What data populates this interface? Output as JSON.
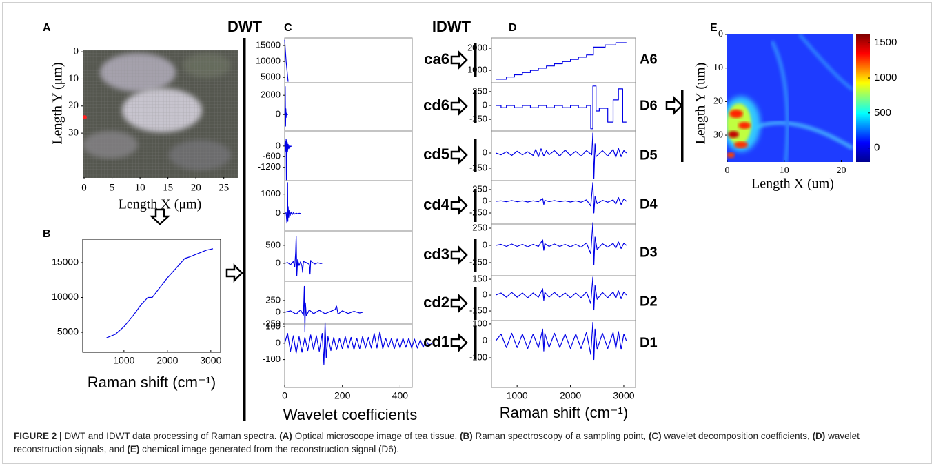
{
  "panel_labels": [
    "A",
    "B",
    "C",
    "D",
    "E"
  ],
  "dwt": "DWT",
  "idwt": "IDWT",
  "panel_a": {
    "xlabel": "Length X (μm)",
    "ylabel": "Length Y (μm)",
    "xlim": [
      -0.25,
      27.5
    ],
    "ylim": [
      -0.8,
      46.5
    ],
    "xticks": [
      0,
      5,
      10,
      15,
      20,
      25
    ],
    "yticks": [
      0,
      10,
      20,
      30
    ]
  },
  "panel_b": {
    "xlabel": "Raman shift (cm⁻¹)",
    "color": "#0000e6",
    "xlim": [
      50,
      3225
    ],
    "ylim": [
      2130,
      18370
    ],
    "xticks": [
      1000,
      2000,
      3000
    ],
    "yticks": [
      5000,
      10000,
      15000
    ],
    "x": [
      600,
      800,
      1000,
      1200,
      1400,
      1550,
      1650,
      1800,
      2000,
      2200,
      2400,
      2500,
      2700,
      2900,
      3050
    ],
    "values": [
      4200,
      4700,
      5800,
      7300,
      9000,
      10000,
      10000,
      11200,
      12800,
      14200,
      15600,
      15800,
      16300,
      16800,
      17000
    ]
  },
  "panel_c": {
    "xlabel": "Wavelet coefficients",
    "color": "#0000e6",
    "xlim": [
      0,
      442
    ],
    "xticks": [
      0,
      200,
      400
    ],
    "subplots": [
      {
        "label": "ca6",
        "ylim": [
          3300,
          17400
        ],
        "yticks": [
          5000,
          10000,
          15000
        ],
        "x": [
          0,
          5,
          12
        ],
        "values": [
          16800,
          10000,
          3600
        ]
      },
      {
        "label": "cd6",
        "ylim": [
          -1700,
          3300
        ],
        "yticks": [
          0,
          2000
        ],
        "x": [
          0,
          1,
          2,
          3,
          4,
          5,
          6,
          7,
          9,
          12
        ],
        "values": [
          0,
          200,
          2900,
          -1200,
          600,
          -300,
          150,
          -50,
          20,
          0
        ]
      },
      {
        "label": "cd5",
        "ylim": [
          -1950,
          850
        ],
        "yticks": [
          -1200,
          -600,
          0
        ],
        "x": [
          0,
          2,
          4,
          5,
          6,
          7,
          8,
          9,
          10,
          12,
          14,
          17,
          20,
          24
        ],
        "values": [
          0,
          250,
          -300,
          400,
          -1900,
          300,
          -700,
          200,
          -300,
          100,
          -150,
          50,
          -30,
          0
        ]
      },
      {
        "label": "cd4",
        "ylim": [
          -900,
          1700
        ],
        "yticks": [
          0,
          1000
        ],
        "x": [
          0,
          5,
          8,
          10,
          11,
          12,
          14,
          16,
          19,
          22,
          26,
          30,
          35,
          40,
          45,
          50,
          55
        ],
        "values": [
          0,
          40,
          -500,
          1600,
          -400,
          350,
          -200,
          150,
          -100,
          80,
          -60,
          40,
          -30,
          20,
          -15,
          10,
          0
        ]
      },
      {
        "label": "cd3",
        "ylim": [
          -500,
          900
        ],
        "yticks": [
          0,
          500
        ],
        "x": [
          0,
          10,
          20,
          30,
          35,
          38,
          40,
          42,
          45,
          50,
          55,
          60,
          62,
          65,
          75,
          85,
          88,
          90,
          95,
          105,
          115,
          125,
          130
        ],
        "values": [
          0,
          20,
          -40,
          50,
          -100,
          300,
          750,
          -350,
          100,
          -60,
          40,
          -80,
          -250,
          50,
          20,
          -30,
          -300,
          80,
          30,
          -20,
          15,
          -10,
          0
        ]
      },
      {
        "label": "cd2",
        "ylim": [
          -250,
          660
        ],
        "yticks": [
          -250,
          0,
          250
        ],
        "x": [
          0,
          20,
          40,
          55,
          65,
          68,
          70,
          72,
          75,
          85,
          100,
          120,
          140,
          160,
          175,
          180,
          185,
          200,
          220,
          240,
          260,
          270
        ],
        "values": [
          0,
          30,
          -40,
          50,
          -60,
          550,
          -420,
          200,
          -80,
          50,
          -30,
          40,
          -30,
          20,
          60,
          130,
          -40,
          30,
          -25,
          20,
          -15,
          0
        ]
      },
      {
        "label": "cd1",
        "ylim": [
          -270,
          117
        ],
        "yticks": [
          -100,
          0,
          100
        ],
        "x": [
          0,
          10,
          20,
          30,
          40,
          50,
          60,
          70,
          80,
          90,
          100,
          110,
          120,
          130,
          136,
          140,
          144,
          150,
          160,
          170,
          180,
          190,
          200,
          210,
          220,
          230,
          240,
          250,
          260,
          270,
          280,
          290,
          300,
          310,
          320,
          330,
          340,
          350,
          360,
          370,
          380,
          390,
          400,
          410,
          420,
          430,
          440,
          450,
          460,
          470,
          480,
          490,
          500,
          510
        ],
        "values": [
          0,
          60,
          -50,
          45,
          -60,
          40,
          -55,
          35,
          -45,
          50,
          -40,
          45,
          -50,
          60,
          -130,
          125,
          -90,
          40,
          -45,
          35,
          -40,
          30,
          -35,
          40,
          -30,
          35,
          -40,
          30,
          -35,
          40,
          -30,
          35,
          -30,
          60,
          -30,
          70,
          -35,
          30,
          -25,
          30,
          -35,
          25,
          -30,
          30,
          -25,
          30,
          -30,
          25,
          -30,
          20,
          -25,
          20,
          -15,
          0
        ]
      }
    ]
  },
  "panel_d": {
    "xlabel": "Raman shift (cm⁻¹)",
    "color": "#0000e6",
    "xlim": [
      520,
      3220
    ],
    "xticks": [
      1000,
      2000,
      3000
    ],
    "subplots": [
      {
        "label": "A6",
        "ylim": [
          440,
          2470
        ],
        "yticks": [
          1000,
          2000
        ],
        "x": [
          600,
          800,
          800,
          950,
          950,
          1100,
          1100,
          1250,
          1250,
          1400,
          1400,
          1550,
          1550,
          1700,
          1700,
          1850,
          1850,
          2000,
          2000,
          2150,
          2150,
          2300,
          2300,
          2430,
          2430,
          2650,
          2650,
          2850,
          2850,
          3050
        ],
        "values": [
          600,
          600,
          700,
          700,
          800,
          800,
          900,
          900,
          1000,
          1000,
          1100,
          1100,
          1200,
          1200,
          1300,
          1300,
          1400,
          1400,
          1500,
          1500,
          1600,
          1600,
          1700,
          1700,
          2050,
          2050,
          2150,
          2150,
          2250,
          2250
        ]
      },
      {
        "label": "D6",
        "ylim": [
          -460,
          410
        ],
        "yticks": [
          -250,
          0,
          250
        ],
        "x": [
          600,
          700,
          700,
          800,
          800,
          950,
          950,
          1100,
          1100,
          1250,
          1250,
          1400,
          1400,
          1550,
          1550,
          1700,
          1700,
          1850,
          1850,
          2000,
          2000,
          2150,
          2150,
          2300,
          2300,
          2380,
          2380,
          2420,
          2420,
          2480,
          2480,
          2540,
          2540,
          2700,
          2700,
          2800,
          2800,
          2900,
          2900,
          2980,
          2980,
          3050
        ],
        "values": [
          0,
          0,
          -40,
          -40,
          0,
          0,
          -40,
          -40,
          0,
          0,
          -40,
          -40,
          0,
          0,
          -40,
          -40,
          0,
          0,
          -40,
          -40,
          0,
          0,
          -40,
          -40,
          0,
          0,
          -420,
          -420,
          350,
          350,
          -100,
          -100,
          -50,
          -50,
          -300,
          -300,
          100,
          100,
          300,
          300,
          -300,
          -300
        ]
      },
      {
        "label": "D5",
        "ylim": [
          -455,
          364
        ],
        "yticks": [
          -250,
          0
        ],
        "x": [
          600,
          700,
          800,
          900,
          1000,
          1100,
          1200,
          1300,
          1350,
          1400,
          1450,
          1500,
          1550,
          1600,
          1700,
          1800,
          1900,
          2000,
          2100,
          2200,
          2300,
          2400,
          2420,
          2440,
          2460,
          2480,
          2600,
          2700,
          2800,
          2850,
          2900,
          2950,
          3000,
          3050
        ],
        "values": [
          0,
          -30,
          20,
          -40,
          30,
          -30,
          20,
          -40,
          60,
          -60,
          70,
          -50,
          40,
          -30,
          40,
          -50,
          50,
          -40,
          30,
          -50,
          40,
          -30,
          330,
          -420,
          150,
          -60,
          40,
          -50,
          60,
          -70,
          80,
          -60,
          40,
          0
        ]
      },
      {
        "label": "D4",
        "ylim": [
          -485,
          440
        ],
        "yticks": [
          -250,
          0,
          250
        ],
        "x": [
          600,
          700,
          800,
          900,
          1000,
          1100,
          1200,
          1300,
          1400,
          1480,
          1500,
          1520,
          1600,
          1700,
          1800,
          1900,
          2000,
          2100,
          2200,
          2300,
          2380,
          2420,
          2440,
          2460,
          2500,
          2600,
          2700,
          2800,
          2850,
          2900,
          2950,
          3000,
          3050
        ],
        "values": [
          0,
          10,
          -10,
          15,
          -10,
          10,
          -15,
          10,
          -10,
          60,
          -70,
          20,
          -10,
          15,
          -10,
          10,
          -15,
          10,
          -20,
          30,
          -100,
          400,
          -250,
          100,
          -50,
          20,
          -20,
          30,
          -60,
          80,
          -70,
          50,
          0
        ]
      },
      {
        "label": "D3",
        "ylim": [
          -440,
          310
        ],
        "yticks": [
          -250,
          0,
          250
        ],
        "x": [
          600,
          700,
          800,
          900,
          1000,
          1100,
          1200,
          1300,
          1400,
          1480,
          1500,
          1520,
          1600,
          1700,
          1800,
          1900,
          2000,
          2100,
          2200,
          2300,
          2380,
          2420,
          2440,
          2460,
          2500,
          2600,
          2700,
          2800,
          2850,
          2900,
          2950,
          3000,
          3050
        ],
        "values": [
          0,
          15,
          -15,
          20,
          -15,
          15,
          -20,
          15,
          -15,
          80,
          -70,
          25,
          -15,
          20,
          -15,
          15,
          -20,
          15,
          -25,
          35,
          -120,
          330,
          -280,
          120,
          -60,
          25,
          -25,
          30,
          -40,
          50,
          -45,
          30,
          0
        ]
      },
      {
        "label": "D2",
        "ylim": [
          -241,
          183
        ],
        "yticks": [
          -150,
          0,
          150
        ],
        "x": [
          600,
          700,
          800,
          900,
          1000,
          1100,
          1200,
          1300,
          1400,
          1480,
          1500,
          1520,
          1600,
          1700,
          1800,
          1900,
          2000,
          2100,
          2200,
          2300,
          2380,
          2420,
          2440,
          2460,
          2500,
          2600,
          2700,
          2800,
          2850,
          2900,
          2950,
          3000,
          3050
        ],
        "values": [
          0,
          20,
          -20,
          25,
          -20,
          20,
          -25,
          20,
          -20,
          60,
          -50,
          25,
          -20,
          25,
          -20,
          20,
          -25,
          20,
          -25,
          30,
          -80,
          170,
          -140,
          90,
          -40,
          25,
          -25,
          30,
          -30,
          40,
          -35,
          30,
          0
        ]
      },
      {
        "label": "D1",
        "ylim": [
          -275,
          120
        ],
        "yticks": [
          -100,
          0,
          100
        ],
        "x": [
          600,
          700,
          800,
          900,
          1000,
          1100,
          1200,
          1300,
          1400,
          1480,
          1500,
          1520,
          1600,
          1700,
          1800,
          1900,
          2000,
          2100,
          2200,
          2300,
          2380,
          2420,
          2440,
          2460,
          2500,
          2600,
          2700,
          2800,
          2850,
          2900,
          2950,
          3000,
          3050
        ],
        "values": [
          0,
          40,
          -40,
          45,
          -40,
          40,
          -45,
          40,
          -40,
          70,
          -60,
          45,
          -40,
          45,
          -40,
          40,
          -45,
          40,
          -45,
          50,
          -80,
          110,
          -110,
          70,
          -50,
          45,
          -45,
          50,
          -45,
          55,
          -50,
          40,
          0
        ]
      }
    ]
  },
  "panel_e": {
    "xlabel": "Length X (um)",
    "ylabel": "Length Y (um)",
    "xlim": [
      0,
      22
    ],
    "ylim": [
      0,
      38
    ],
    "xticks": [
      0,
      10,
      20
    ],
    "yticks": [
      0,
      10,
      20,
      30
    ],
    "colorbar": {
      "ylim": [
        -200,
        1620
      ],
      "yticks": [
        0,
        500,
        1000,
        1500
      ]
    }
  },
  "caption": [
    {
      "text": "FIGURE 2 |",
      "bold": true
    },
    {
      "text": " DWT and IDWT data processing of Raman spectra. ",
      "bold": false
    },
    {
      "text": "(A)",
      "bold": true
    },
    {
      "text": " Optical microscope image of tea tissue, ",
      "bold": false
    },
    {
      "text": "(B)",
      "bold": true
    },
    {
      "text": " Raman spectroscopy of a sampling point, ",
      "bold": false
    },
    {
      "text": "(C)",
      "bold": true
    },
    {
      "text": " wavelet decomposition coefficients, ",
      "bold": false
    },
    {
      "text": "(D)",
      "bold": true
    },
    {
      "text": " wavelet reconstruction signals, and ",
      "bold": false
    },
    {
      "text": "(E)",
      "bold": true
    },
    {
      "text": " chemical image generated from the reconstruction signal (D6).",
      "bold": false
    }
  ]
}
